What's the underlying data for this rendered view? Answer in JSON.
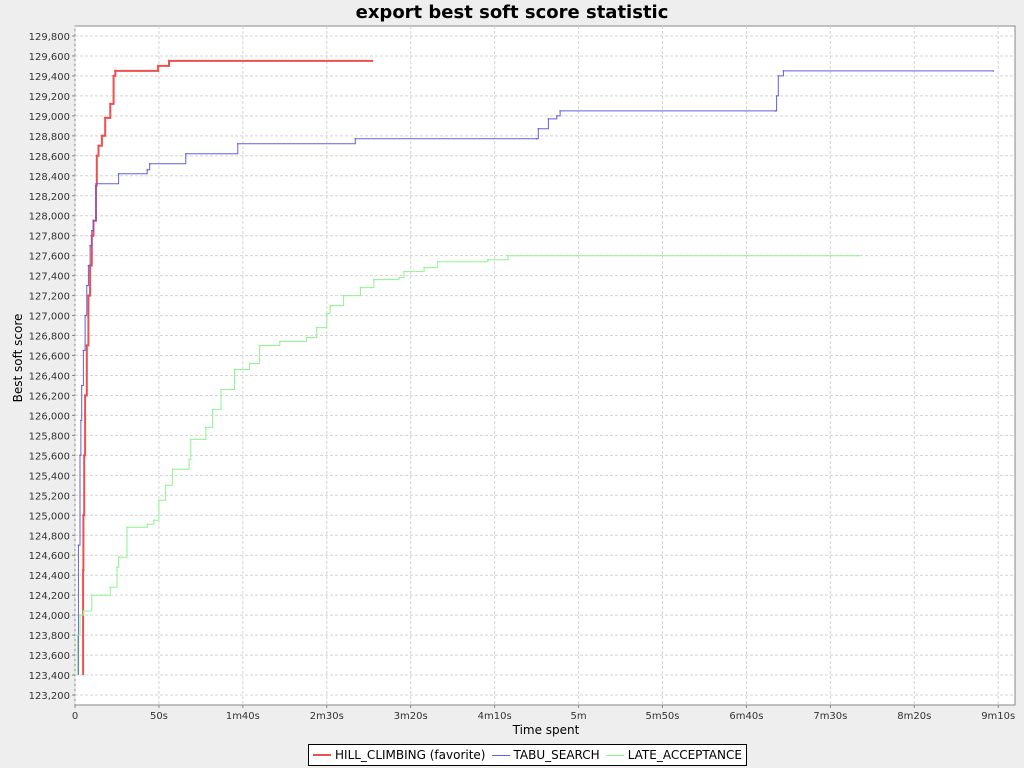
{
  "chart_data": {
    "type": "line",
    "step": true,
    "title": "export best soft score statistic",
    "xlabel": "Time spent",
    "ylabel": "Best soft score",
    "xlim_seconds": [
      0,
      560
    ],
    "ylim": [
      123100,
      129900
    ],
    "x_ticks": [
      {
        "value": 0,
        "label": "0"
      },
      {
        "value": 50,
        "label": "50s"
      },
      {
        "value": 100,
        "label": "1m40s"
      },
      {
        "value": 150,
        "label": "2m30s"
      },
      {
        "value": 200,
        "label": "3m20s"
      },
      {
        "value": 250,
        "label": "4m10s"
      },
      {
        "value": 300,
        "label": "5m"
      },
      {
        "value": 350,
        "label": "5m50s"
      },
      {
        "value": 400,
        "label": "6m40s"
      },
      {
        "value": 450,
        "label": "7m30s"
      },
      {
        "value": 500,
        "label": "8m20s"
      },
      {
        "value": 550,
        "label": "9m10s"
      }
    ],
    "y_ticks": [
      {
        "value": 123200,
        "label": "123,200"
      },
      {
        "value": 123400,
        "label": "123,400"
      },
      {
        "value": 123600,
        "label": "123,600"
      },
      {
        "value": 123800,
        "label": "123,800"
      },
      {
        "value": 124000,
        "label": "124,000"
      },
      {
        "value": 124200,
        "label": "124,200"
      },
      {
        "value": 124400,
        "label": "124,400"
      },
      {
        "value": 124600,
        "label": "124,600"
      },
      {
        "value": 124800,
        "label": "124,800"
      },
      {
        "value": 125000,
        "label": "125,000"
      },
      {
        "value": 125200,
        "label": "125,200"
      },
      {
        "value": 125400,
        "label": "125,400"
      },
      {
        "value": 125600,
        "label": "125,600"
      },
      {
        "value": 125800,
        "label": "125,800"
      },
      {
        "value": 126000,
        "label": "126,000"
      },
      {
        "value": 126200,
        "label": "126,200"
      },
      {
        "value": 126400,
        "label": "126,400"
      },
      {
        "value": 126600,
        "label": "126,600"
      },
      {
        "value": 126800,
        "label": "126,800"
      },
      {
        "value": 127000,
        "label": "127,000"
      },
      {
        "value": 127200,
        "label": "127,200"
      },
      {
        "value": 127400,
        "label": "127,400"
      },
      {
        "value": 127600,
        "label": "127,600"
      },
      {
        "value": 127800,
        "label": "127,800"
      },
      {
        "value": 128000,
        "label": "128,000"
      },
      {
        "value": 128200,
        "label": "128,200"
      },
      {
        "value": 128400,
        "label": "128,400"
      },
      {
        "value": 128600,
        "label": "128,600"
      },
      {
        "value": 128800,
        "label": "128,800"
      },
      {
        "value": 129000,
        "label": "129,000"
      },
      {
        "value": 129200,
        "label": "129,200"
      },
      {
        "value": 129400,
        "label": "129,400"
      },
      {
        "value": 129600,
        "label": "129,600"
      },
      {
        "value": 129800,
        "label": "129,800"
      }
    ],
    "grid": true,
    "legend_position": "bottom-center",
    "series": [
      {
        "name": "HILL_CLIMBING (favorite)",
        "color": "#ef4f4f",
        "stroke_width": 2,
        "points": [
          [
            4.8,
            123400
          ],
          [
            4.8,
            124450
          ],
          [
            5,
            125000
          ],
          [
            5.5,
            125600
          ],
          [
            6,
            126200
          ],
          [
            7,
            126700
          ],
          [
            8,
            127200
          ],
          [
            9,
            127500
          ],
          [
            10,
            127800
          ],
          [
            11,
            127950
          ],
          [
            12.5,
            128300
          ],
          [
            13,
            128600
          ],
          [
            14,
            128700
          ],
          [
            16,
            128800
          ],
          [
            18,
            128980
          ],
          [
            21,
            129120
          ],
          [
            23,
            129400
          ],
          [
            24,
            129450
          ],
          [
            49.5,
            129500
          ],
          [
            56,
            129550
          ],
          [
            177,
            129550
          ]
        ]
      },
      {
        "name": "TABU_SEARCH",
        "color": "#6060dd",
        "stroke_width": 1,
        "points": [
          [
            2,
            123400
          ],
          [
            2,
            124700
          ],
          [
            3,
            125600
          ],
          [
            3.5,
            125950
          ],
          [
            4,
            126300
          ],
          [
            5,
            126650
          ],
          [
            6,
            127000
          ],
          [
            7,
            127300
          ],
          [
            8,
            127500
          ],
          [
            9,
            127700
          ],
          [
            10,
            127850
          ],
          [
            11,
            127950
          ],
          [
            12.5,
            128320
          ],
          [
            26,
            128420
          ],
          [
            43,
            128460
          ],
          [
            44.5,
            128520
          ],
          [
            66,
            128620
          ],
          [
            97,
            128720
          ],
          [
            167,
            128770
          ],
          [
            275,
            128770
          ],
          [
            276,
            128870
          ],
          [
            282,
            128970
          ],
          [
            287,
            129000
          ],
          [
            289,
            129050
          ],
          [
            417.5,
            129050
          ],
          [
            418,
            129200
          ],
          [
            419,
            129400
          ],
          [
            422,
            129450
          ],
          [
            547,
            129450
          ]
        ]
      },
      {
        "name": "LATE_ACCEPTANCE",
        "color": "#8cf58c",
        "stroke_width": 1,
        "points": [
          [
            1,
            123400
          ],
          [
            1.5,
            123800
          ],
          [
            3,
            124000
          ],
          [
            5,
            124040
          ],
          [
            10,
            124200
          ],
          [
            16,
            124200
          ],
          [
            21,
            124280
          ],
          [
            25,
            124480
          ],
          [
            26,
            124580
          ],
          [
            31,
            124880
          ],
          [
            43,
            124910
          ],
          [
            47,
            124950
          ],
          [
            50,
            125150
          ],
          [
            54,
            125300
          ],
          [
            58,
            125460
          ],
          [
            68,
            125560
          ],
          [
            69,
            125760
          ],
          [
            78,
            125880
          ],
          [
            82,
            126060
          ],
          [
            87,
            126260
          ],
          [
            95,
            126460
          ],
          [
            104,
            126520
          ],
          [
            110,
            126700
          ],
          [
            122,
            126740
          ],
          [
            138,
            126780
          ],
          [
            144,
            126880
          ],
          [
            150,
            127020
          ],
          [
            152,
            127100
          ],
          [
            160,
            127200
          ],
          [
            170,
            127280
          ],
          [
            178,
            127360
          ],
          [
            193,
            127380
          ],
          [
            196,
            127440
          ],
          [
            208,
            127480
          ],
          [
            216,
            127540
          ],
          [
            246,
            127560
          ],
          [
            258,
            127600
          ],
          [
            467,
            127600
          ]
        ]
      }
    ]
  }
}
